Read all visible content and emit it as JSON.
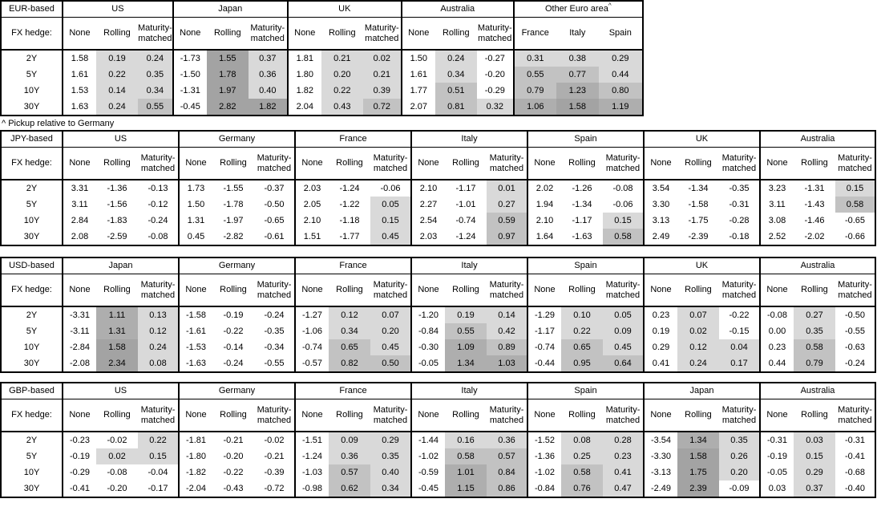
{
  "footnote": "^ Pickup relative to Germany",
  "colors": {
    "background": "#ffffff",
    "border": "#000000",
    "shade_band_0_to_05": "#d9d9d9",
    "shade_band_05_to_1": "#c2c2c2",
    "shade_band_1_to_15": "#aeaeae",
    "shade_band_15_plus": "#a3a3a3"
  },
  "shared": {
    "fx_hedge_label": "FX hedge:",
    "hedge_sub_headers": [
      "None",
      "Rolling",
      "Maturity-matched"
    ],
    "row_labels": [
      "2Y",
      "5Y",
      "10Y",
      "30Y"
    ]
  },
  "tables": [
    {
      "base_label": "EUR-based",
      "groups": [
        {
          "name": "US",
          "type": "hedge",
          "rows": [
            [
              "1.58",
              "0.19",
              "0.24"
            ],
            [
              "1.61",
              "0.22",
              "0.35"
            ],
            [
              "1.53",
              "0.14",
              "0.34"
            ],
            [
              "1.63",
              "0.24",
              "0.55"
            ]
          ]
        },
        {
          "name": "Japan",
          "type": "hedge",
          "rows": [
            [
              "-1.73",
              "1.55",
              "0.37"
            ],
            [
              "-1.50",
              "1.78",
              "0.36"
            ],
            [
              "-1.31",
              "1.97",
              "0.40"
            ],
            [
              "-0.45",
              "2.82",
              "1.82"
            ]
          ]
        },
        {
          "name": "UK",
          "type": "hedge",
          "rows": [
            [
              "1.81",
              "0.21",
              "0.02"
            ],
            [
              "1.80",
              "0.20",
              "0.21"
            ],
            [
              "1.82",
              "0.22",
              "0.39"
            ],
            [
              "2.04",
              "0.43",
              "0.72"
            ]
          ]
        },
        {
          "name": "Australia",
          "type": "hedge",
          "rows": [
            [
              "1.50",
              "0.24",
              "-0.27"
            ],
            [
              "1.61",
              "0.34",
              "-0.20"
            ],
            [
              "1.77",
              "0.51",
              "-0.29"
            ],
            [
              "2.07",
              "0.81",
              "0.32"
            ]
          ]
        },
        {
          "name": "Other Euro area",
          "superscript": "^",
          "type": "countries",
          "sub_headers": [
            "France",
            "Italy",
            "Spain"
          ],
          "rows": [
            [
              "0.31",
              "0.38",
              "0.29"
            ],
            [
              "0.55",
              "0.77",
              "0.44"
            ],
            [
              "0.79",
              "1.23",
              "0.80"
            ],
            [
              "1.06",
              "1.58",
              "1.19"
            ]
          ]
        }
      ]
    },
    {
      "base_label": "JPY-based",
      "groups": [
        {
          "name": "US",
          "type": "hedge",
          "rows": [
            [
              "3.31",
              "-1.36",
              "-0.13"
            ],
            [
              "3.11",
              "-1.56",
              "-0.12"
            ],
            [
              "2.84",
              "-1.83",
              "-0.24"
            ],
            [
              "2.08",
              "-2.59",
              "-0.08"
            ]
          ]
        },
        {
          "name": "Germany",
          "type": "hedge",
          "rows": [
            [
              "1.73",
              "-1.55",
              "-0.37"
            ],
            [
              "1.50",
              "-1.78",
              "-0.50"
            ],
            [
              "1.31",
              "-1.97",
              "-0.65"
            ],
            [
              "0.45",
              "-2.82",
              "-0.61"
            ]
          ]
        },
        {
          "name": "France",
          "type": "hedge",
          "rows": [
            [
              "2.03",
              "-1.24",
              "-0.06"
            ],
            [
              "2.05",
              "-1.22",
              "0.05"
            ],
            [
              "2.10",
              "-1.18",
              "0.15"
            ],
            [
              "1.51",
              "-1.77",
              "0.45"
            ]
          ]
        },
        {
          "name": "Italy",
          "type": "hedge",
          "rows": [
            [
              "2.10",
              "-1.17",
              "0.01"
            ],
            [
              "2.27",
              "-1.01",
              "0.27"
            ],
            [
              "2.54",
              "-0.74",
              "0.59"
            ],
            [
              "2.03",
              "-1.24",
              "0.97"
            ]
          ]
        },
        {
          "name": "Spain",
          "type": "hedge",
          "rows": [
            [
              "2.02",
              "-1.26",
              "-0.08"
            ],
            [
              "1.94",
              "-1.34",
              "-0.06"
            ],
            [
              "2.10",
              "-1.17",
              "0.15"
            ],
            [
              "1.64",
              "-1.63",
              "0.58"
            ]
          ]
        },
        {
          "name": "UK",
          "type": "hedge",
          "rows": [
            [
              "3.54",
              "-1.34",
              "-0.35"
            ],
            [
              "3.30",
              "-1.58",
              "-0.31"
            ],
            [
              "3.13",
              "-1.75",
              "-0.28"
            ],
            [
              "2.49",
              "-2.39",
              "-0.18"
            ]
          ]
        },
        {
          "name": "Australia",
          "type": "hedge",
          "rows": [
            [
              "3.23",
              "-1.31",
              "0.15"
            ],
            [
              "3.11",
              "-1.43",
              "0.58"
            ],
            [
              "3.08",
              "-1.46",
              "-0.65"
            ],
            [
              "2.52",
              "-2.02",
              "-0.66"
            ]
          ]
        }
      ]
    },
    {
      "base_label": "USD-based",
      "groups": [
        {
          "name": "Japan",
          "type": "hedge",
          "rows": [
            [
              "-3.31",
              "1.11",
              "0.13"
            ],
            [
              "-3.11",
              "1.31",
              "0.12"
            ],
            [
              "-2.84",
              "1.58",
              "0.24"
            ],
            [
              "-2.08",
              "2.34",
              "0.08"
            ]
          ]
        },
        {
          "name": "Germany",
          "type": "hedge",
          "rows": [
            [
              "-1.58",
              "-0.19",
              "-0.24"
            ],
            [
              "-1.61",
              "-0.22",
              "-0.35"
            ],
            [
              "-1.53",
              "-0.14",
              "-0.34"
            ],
            [
              "-1.63",
              "-0.24",
              "-0.55"
            ]
          ]
        },
        {
          "name": "France",
          "type": "hedge",
          "rows": [
            [
              "-1.27",
              "0.12",
              "0.07"
            ],
            [
              "-1.06",
              "0.34",
              "0.20"
            ],
            [
              "-0.74",
              "0.65",
              "0.45"
            ],
            [
              "-0.57",
              "0.82",
              "0.50"
            ]
          ]
        },
        {
          "name": "Italy",
          "type": "hedge",
          "rows": [
            [
              "-1.20",
              "0.19",
              "0.14"
            ],
            [
              "-0.84",
              "0.55",
              "0.42"
            ],
            [
              "-0.30",
              "1.09",
              "0.89"
            ],
            [
              "-0.05",
              "1.34",
              "1.03"
            ]
          ]
        },
        {
          "name": "Spain",
          "type": "hedge",
          "rows": [
            [
              "-1.29",
              "0.10",
              "0.05"
            ],
            [
              "-1.17",
              "0.22",
              "0.09"
            ],
            [
              "-0.74",
              "0.65",
              "0.45"
            ],
            [
              "-0.44",
              "0.95",
              "0.64"
            ]
          ]
        },
        {
          "name": "UK",
          "type": "hedge",
          "rows": [
            [
              "0.23",
              "0.07",
              "-0.22"
            ],
            [
              "0.19",
              "0.02",
              "-0.15"
            ],
            [
              "0.29",
              "0.12",
              "0.04"
            ],
            [
              "0.41",
              "0.24",
              "0.17"
            ]
          ]
        },
        {
          "name": "Australia",
          "type": "hedge",
          "rows": [
            [
              "-0.08",
              "0.27",
              "-0.50"
            ],
            [
              "0.00",
              "0.35",
              "-0.55"
            ],
            [
              "0.23",
              "0.58",
              "-0.63"
            ],
            [
              "0.44",
              "0.79",
              "-0.24"
            ]
          ]
        }
      ]
    },
    {
      "base_label": "GBP-based",
      "groups": [
        {
          "name": "US",
          "type": "hedge",
          "rows": [
            [
              "-0.23",
              "-0.02",
              "0.22"
            ],
            [
              "-0.19",
              "0.02",
              "0.15"
            ],
            [
              "-0.29",
              "-0.08",
              "-0.04"
            ],
            [
              "-0.41",
              "-0.20",
              "-0.17"
            ]
          ]
        },
        {
          "name": "Germany",
          "type": "hedge",
          "rows": [
            [
              "-1.81",
              "-0.21",
              "-0.02"
            ],
            [
              "-1.80",
              "-0.20",
              "-0.21"
            ],
            [
              "-1.82",
              "-0.22",
              "-0.39"
            ],
            [
              "-2.04",
              "-0.43",
              "-0.72"
            ]
          ]
        },
        {
          "name": "France",
          "type": "hedge",
          "rows": [
            [
              "-1.51",
              "0.09",
              "0.29"
            ],
            [
              "-1.24",
              "0.36",
              "0.35"
            ],
            [
              "-1.03",
              "0.57",
              "0.40"
            ],
            [
              "-0.98",
              "0.62",
              "0.34"
            ]
          ]
        },
        {
          "name": "Italy",
          "type": "hedge",
          "rows": [
            [
              "-1.44",
              "0.16",
              "0.36"
            ],
            [
              "-1.02",
              "0.58",
              "0.57"
            ],
            [
              "-0.59",
              "1.01",
              "0.84"
            ],
            [
              "-0.45",
              "1.15",
              "0.86"
            ]
          ]
        },
        {
          "name": "Spain",
          "type": "hedge",
          "rows": [
            [
              "-1.52",
              "0.08",
              "0.28"
            ],
            [
              "-1.36",
              "0.25",
              "0.23"
            ],
            [
              "-1.02",
              "0.58",
              "0.41"
            ],
            [
              "-0.84",
              "0.76",
              "0.47"
            ]
          ]
        },
        {
          "name": "Japan",
          "type": "hedge",
          "rows": [
            [
              "-3.54",
              "1.34",
              "0.35"
            ],
            [
              "-3.30",
              "1.58",
              "0.26"
            ],
            [
              "-3.13",
              "1.75",
              "0.20"
            ],
            [
              "-2.49",
              "2.39",
              "-0.09"
            ]
          ]
        },
        {
          "name": "Australia",
          "type": "hedge",
          "rows": [
            [
              "-0.31",
              "0.03",
              "-0.31"
            ],
            [
              "-0.19",
              "0.15",
              "-0.41"
            ],
            [
              "-0.05",
              "0.29",
              "-0.68"
            ],
            [
              "0.03",
              "0.37",
              "-0.40"
            ]
          ]
        }
      ]
    }
  ]
}
